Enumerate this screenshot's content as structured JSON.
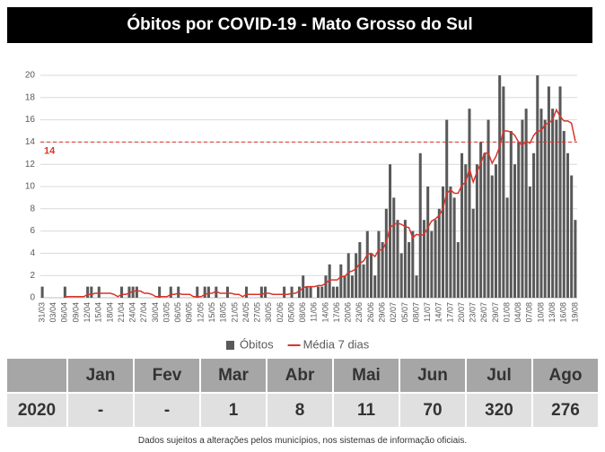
{
  "chart_data": {
    "type": "bar",
    "title": "Óbitos por COVID-19 - Mato Grosso do Sul",
    "categories": [
      "31/03",
      null,
      null,
      "03/04",
      null,
      null,
      "06/04",
      null,
      null,
      "09/04",
      null,
      null,
      "12/04",
      null,
      null,
      "15/04",
      null,
      null,
      "18/04",
      null,
      null,
      "21/04",
      null,
      null,
      "24/04",
      null,
      null,
      "27/04",
      null,
      null,
      "30/04",
      null,
      null,
      "03/05",
      null,
      null,
      "06/05",
      null,
      null,
      "09/05",
      null,
      null,
      "12/05",
      null,
      null,
      "15/05",
      null,
      null,
      "18/05",
      null,
      null,
      "21/05",
      null,
      null,
      "24/05",
      null,
      null,
      "27/05",
      null,
      null,
      "30/05",
      null,
      null,
      "02/06",
      null,
      null,
      "05/06",
      null,
      null,
      "08/06",
      null,
      null,
      "11/06",
      null,
      null,
      "14/06",
      null,
      null,
      "17/06",
      null,
      null,
      "20/06",
      null,
      null,
      "23/06",
      null,
      null,
      "26/06",
      null,
      null,
      "29/06",
      null,
      null,
      "02/07",
      null,
      null,
      "05/07",
      null,
      null,
      "08/07",
      null,
      null,
      "11/07",
      null,
      null,
      "14/07",
      null,
      null,
      "17/07",
      null,
      null,
      "20/07",
      null,
      null,
      "23/07",
      null,
      null,
      "26/07",
      null,
      null,
      "29/07",
      null,
      null,
      "01/08",
      null,
      null,
      "04/08",
      null,
      null,
      "07/08",
      null,
      null,
      "10/08",
      null,
      null,
      "13/08",
      null,
      null,
      "16/08",
      null,
      null,
      "19/08"
    ],
    "series": [
      {
        "name": "Óbitos",
        "color": "#595959",
        "type": "bar",
        "values": [
          1,
          0,
          0,
          0,
          0,
          0,
          1,
          0,
          0,
          0,
          0,
          0,
          1,
          1,
          0,
          1,
          0,
          0,
          0,
          0,
          0,
          1,
          0,
          1,
          1,
          1,
          0,
          0,
          0,
          0,
          0,
          1,
          0,
          0,
          1,
          0,
          1,
          0,
          0,
          0,
          0,
          1,
          0,
          1,
          1,
          0,
          1,
          0,
          0,
          1,
          0,
          0,
          0,
          0,
          1,
          0,
          0,
          0,
          1,
          1,
          0,
          0,
          0,
          0,
          1,
          0,
          1,
          0,
          1,
          2,
          1,
          1,
          0,
          1,
          1,
          2,
          3,
          1,
          1,
          3,
          2,
          4,
          2,
          4,
          5,
          3,
          6,
          4,
          2,
          6,
          5,
          8,
          12,
          9,
          7,
          4,
          7,
          5,
          6,
          2,
          13,
          7,
          10,
          6,
          7,
          8,
          10,
          16,
          10,
          9,
          5,
          13,
          12,
          17,
          8,
          12,
          14,
          13,
          16,
          11,
          12,
          20,
          19,
          9,
          15,
          12,
          14,
          16,
          17,
          10,
          13,
          20,
          17,
          16,
          19,
          17,
          16,
          19,
          15,
          13,
          11,
          7
        ]
      },
      {
        "name": "Média 7 dias",
        "color": "#d9342b",
        "type": "line",
        "values": [
          null,
          null,
          null,
          null,
          null,
          null,
          0.1,
          0.1,
          0.1,
          0.1,
          0.1,
          0.1,
          0.3,
          0.3,
          0.4,
          0.4,
          0.4,
          0.4,
          0.4,
          0.3,
          0.1,
          0.3,
          0.3,
          0.4,
          0.6,
          0.6,
          0.6,
          0.4,
          0.4,
          0.3,
          0.1,
          0.1,
          0.1,
          0.1,
          0.3,
          0.3,
          0.4,
          0.3,
          0.3,
          0.3,
          0.1,
          0.1,
          0.1,
          0.3,
          0.4,
          0.4,
          0.6,
          0.4,
          0.4,
          0.4,
          0.4,
          0.3,
          0.3,
          0.1,
          0.3,
          0.3,
          0.3,
          0.3,
          0.3,
          0.4,
          0.4,
          0.3,
          0.3,
          0.3,
          0.3,
          0.3,
          0.4,
          0.4,
          0.6,
          0.9,
          1.0,
          1.0,
          1.0,
          1.1,
          1.1,
          1.3,
          1.6,
          1.6,
          1.6,
          1.9,
          1.9,
          2.3,
          2.4,
          2.6,
          3.1,
          3.3,
          3.9,
          4.0,
          3.7,
          4.3,
          4.3,
          5.0,
          6.3,
          6.6,
          6.7,
          6.6,
          6.4,
          6.3,
          5.4,
          5.7,
          5.6,
          5.7,
          6.3,
          6.9,
          7.1,
          7.4,
          8.0,
          9.4,
          9.7,
          9.4,
          9.4,
          10.1,
          10.4,
          11.6,
          10.4,
          11.3,
          12.1,
          13.0,
          13.0,
          12.1,
          12.7,
          13.6,
          15.0,
          15.0,
          14.9,
          14.6,
          14.0,
          13.7,
          14.1,
          13.9,
          14.6,
          15.0,
          15.0,
          15.6,
          15.7,
          16.0,
          16.9,
          16.3,
          15.9,
          15.9,
          15.7,
          14.1
        ]
      }
    ],
    "reference_line": {
      "value": 14,
      "color": "#d9342b"
    },
    "ylim": [
      0,
      20
    ],
    "yticks": [
      0,
      2,
      4,
      6,
      8,
      10,
      12,
      14,
      16,
      18,
      20
    ],
    "grid": true,
    "legend": "bottom"
  },
  "table": {
    "header": [
      "Jan",
      "Fev",
      "Mar",
      "Abr",
      "Mai",
      "Jun",
      "Jul",
      "Ago"
    ],
    "rows": [
      [
        "2020",
        "-",
        "-",
        1,
        8,
        11,
        70,
        320,
        276
      ]
    ]
  },
  "note": "Dados sujeitos a alterações pelos municípios, nos sistemas de informação oficiais."
}
